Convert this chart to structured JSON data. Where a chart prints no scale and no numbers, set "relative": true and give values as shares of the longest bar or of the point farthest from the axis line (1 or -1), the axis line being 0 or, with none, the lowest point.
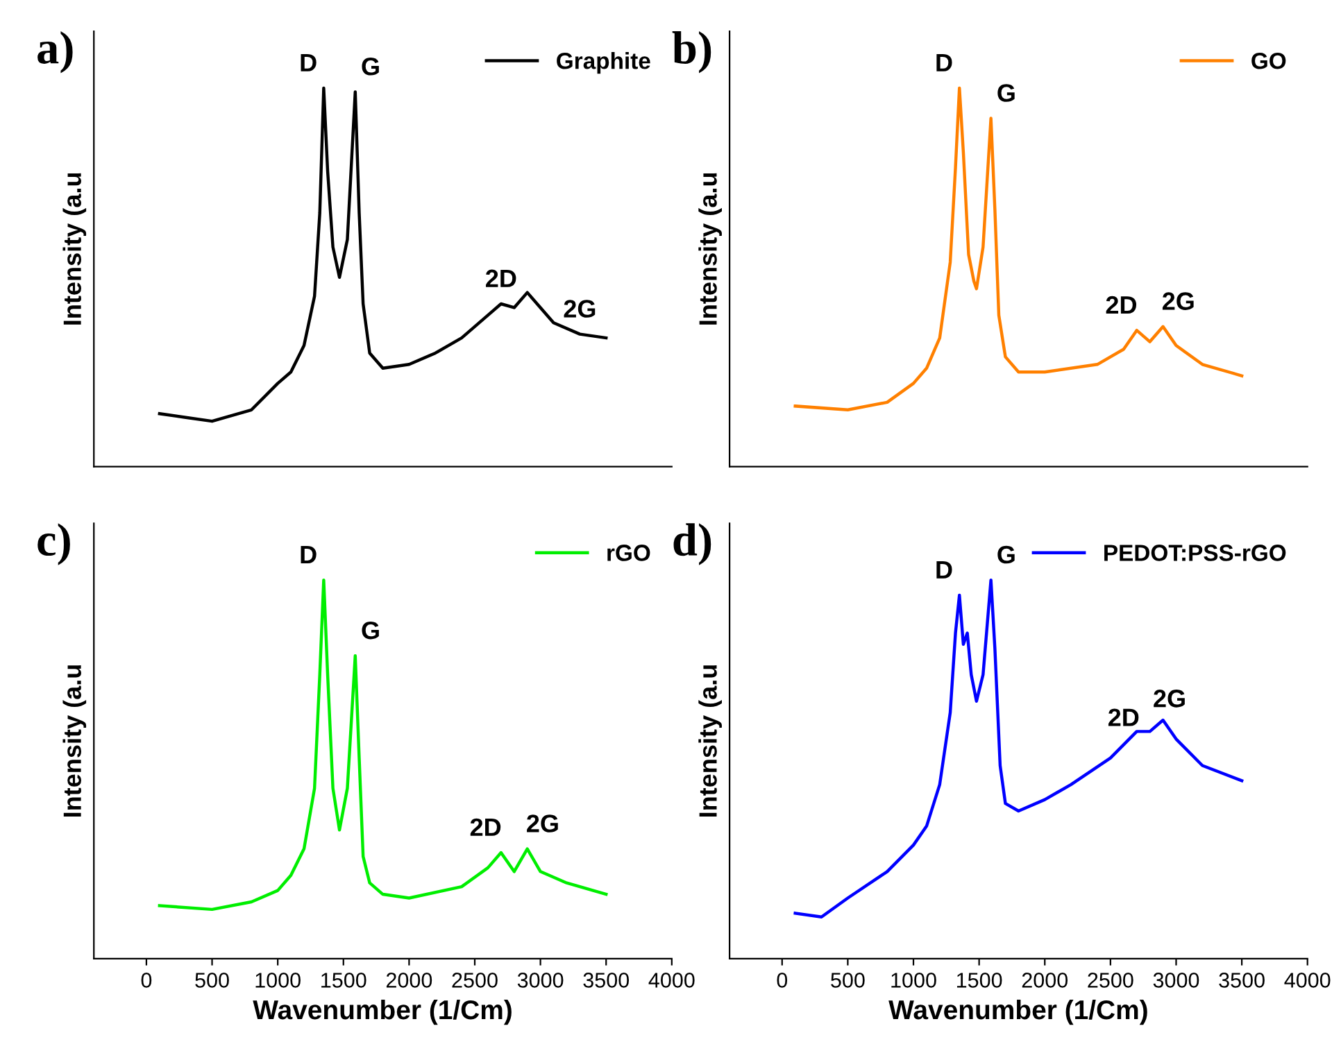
{
  "chart_data": [
    {
      "type": "line",
      "title": "a)",
      "ylabel": "Intensity (a.u",
      "relative": true,
      "legend": "top right",
      "tick_labels": false,
      "xlim": [
        -400,
        4000
      ],
      "x": [
        100,
        300,
        500,
        800,
        1000,
        1100,
        1200,
        1280,
        1320,
        1350,
        1380,
        1420,
        1470,
        1530,
        1590,
        1620,
        1650,
        1700,
        1800,
        2000,
        2200,
        2400,
        2600,
        2700,
        2800,
        2900,
        3000,
        3100,
        3300,
        3500
      ],
      "series": [
        {
          "name": "Graphite",
          "color": "#000000",
          "values": [
            0.14,
            0.13,
            0.12,
            0.15,
            0.22,
            0.25,
            0.32,
            0.45,
            0.67,
            1.0,
            0.78,
            0.58,
            0.5,
            0.6,
            0.99,
            0.67,
            0.43,
            0.3,
            0.26,
            0.27,
            0.3,
            0.34,
            0.4,
            0.43,
            0.42,
            0.46,
            0.42,
            0.38,
            0.35,
            0.34
          ]
        }
      ],
      "annotations": [
        {
          "text": "D",
          "x": 1350,
          "y": 1.0
        },
        {
          "text": "G",
          "x": 1590,
          "y": 0.99
        },
        {
          "text": "2D",
          "x": 2700,
          "y": 0.43
        },
        {
          "text": "2G",
          "x": 3300,
          "y": 0.35
        }
      ]
    },
    {
      "type": "line",
      "title": "b)",
      "ylabel": "Intensity (a.u",
      "relative": true,
      "legend": "top right",
      "tick_labels": false,
      "xlim": [
        -400,
        4000
      ],
      "x": [
        100,
        500,
        800,
        1000,
        1100,
        1200,
        1280,
        1320,
        1350,
        1380,
        1420,
        1460,
        1480,
        1530,
        1590,
        1620,
        1650,
        1700,
        1800,
        2000,
        2400,
        2600,
        2700,
        2800,
        2900,
        3000,
        3200,
        3500
      ],
      "series": [
        {
          "name": "GO",
          "color": "#ff8000",
          "values": [
            0.16,
            0.15,
            0.17,
            0.22,
            0.26,
            0.34,
            0.54,
            0.79,
            1.0,
            0.83,
            0.56,
            0.49,
            0.47,
            0.58,
            0.92,
            0.68,
            0.4,
            0.29,
            0.25,
            0.25,
            0.27,
            0.31,
            0.36,
            0.33,
            0.37,
            0.32,
            0.27,
            0.24
          ]
        }
      ],
      "annotations": [
        {
          "text": "D",
          "x": 1350,
          "y": 1.0
        },
        {
          "text": "G",
          "x": 1590,
          "y": 0.92
        },
        {
          "text": "2D",
          "x": 2700,
          "y": 0.36
        },
        {
          "text": "2G",
          "x": 2900,
          "y": 0.37
        }
      ]
    },
    {
      "type": "line",
      "title": "c)",
      "ylabel": "Intensity (a.u",
      "xlabel": "Wavenumber (1/Cm)",
      "relative": true,
      "legend": "top right",
      "tick_labels": "x",
      "xlim": [
        -400,
        4000
      ],
      "xticks": [
        0,
        500,
        1000,
        1500,
        2000,
        2500,
        3000,
        3500,
        4000
      ],
      "x": [
        100,
        500,
        800,
        1000,
        1100,
        1200,
        1280,
        1320,
        1350,
        1380,
        1420,
        1470,
        1530,
        1590,
        1620,
        1650,
        1700,
        1800,
        2000,
        2400,
        2600,
        2700,
        2800,
        2900,
        3000,
        3200,
        3500
      ],
      "series": [
        {
          "name": "rGO",
          "color": "#00ee00",
          "values": [
            0.14,
            0.13,
            0.15,
            0.18,
            0.22,
            0.29,
            0.45,
            0.75,
            1.0,
            0.75,
            0.45,
            0.34,
            0.45,
            0.8,
            0.53,
            0.27,
            0.2,
            0.17,
            0.16,
            0.19,
            0.24,
            0.28,
            0.23,
            0.29,
            0.23,
            0.2,
            0.17
          ]
        }
      ],
      "annotations": [
        {
          "text": "D",
          "x": 1350,
          "y": 1.0
        },
        {
          "text": "G",
          "x": 1590,
          "y": 0.8
        },
        {
          "text": "2D",
          "x": 2700,
          "y": 0.28
        },
        {
          "text": "2G",
          "x": 2900,
          "y": 0.29
        }
      ]
    },
    {
      "type": "line",
      "title": "d)",
      "ylabel": "Intensity (a.u",
      "xlabel": "Wavenumber (1/Cm)",
      "relative": true,
      "legend": "top right",
      "tick_labels": "x",
      "xlim": [
        -400,
        4000
      ],
      "xticks": [
        0,
        500,
        1000,
        1500,
        2000,
        2500,
        3000,
        3500,
        4000
      ],
      "x": [
        100,
        300,
        500,
        800,
        1000,
        1100,
        1200,
        1280,
        1320,
        1350,
        1380,
        1410,
        1440,
        1480,
        1530,
        1590,
        1620,
        1660,
        1700,
        1800,
        2000,
        2200,
        2500,
        2700,
        2800,
        2900,
        3000,
        3200,
        3500
      ],
      "series": [
        {
          "name": "PEDOT:PSS-rGO",
          "color": "#0000ff",
          "values": [
            0.12,
            0.11,
            0.16,
            0.23,
            0.3,
            0.35,
            0.46,
            0.65,
            0.86,
            0.96,
            0.83,
            0.86,
            0.75,
            0.68,
            0.75,
            1.0,
            0.82,
            0.51,
            0.41,
            0.39,
            0.42,
            0.46,
            0.53,
            0.6,
            0.6,
            0.63,
            0.58,
            0.51,
            0.47
          ]
        }
      ],
      "annotations": [
        {
          "text": "D",
          "x": 1350,
          "y": 0.96
        },
        {
          "text": "G",
          "x": 1590,
          "y": 1.0
        },
        {
          "text": "2D",
          "x": 2600,
          "y": 0.57
        },
        {
          "text": "2G",
          "x": 2950,
          "y": 0.62
        }
      ]
    }
  ]
}
